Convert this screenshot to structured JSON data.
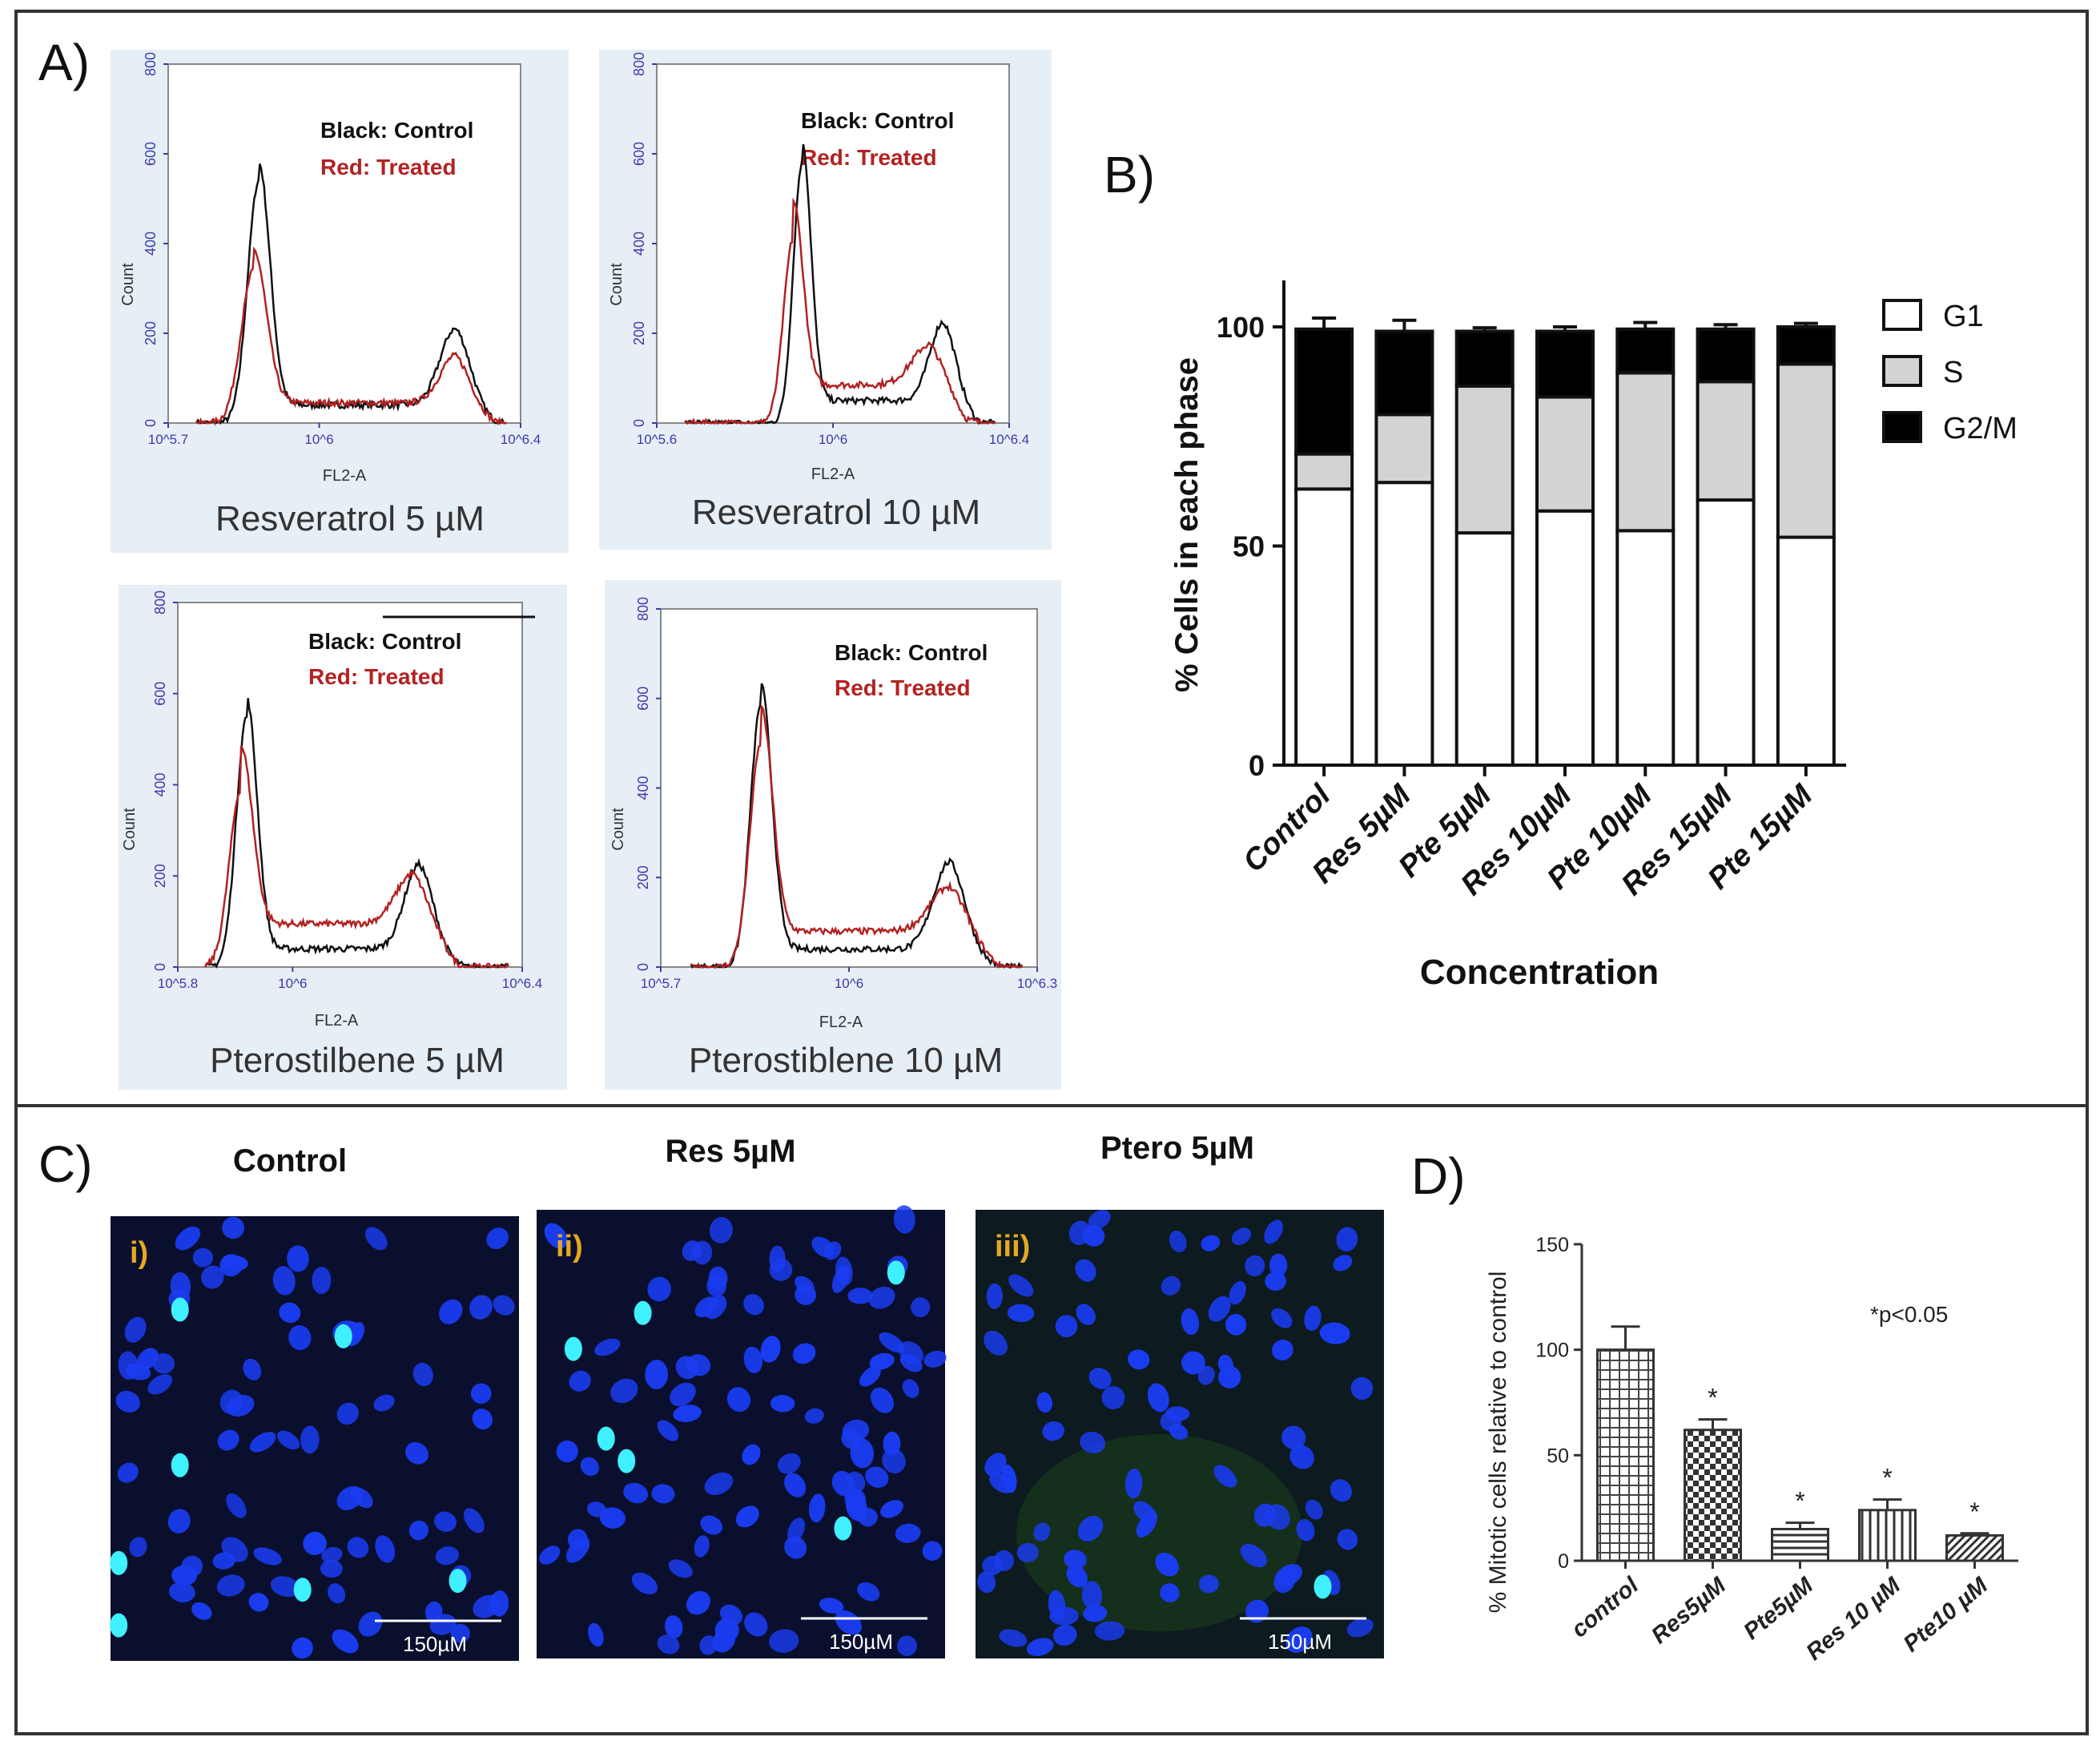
{
  "figure": {
    "panel_a_label": "A)",
    "panel_b_label": "B)",
    "panel_c_label": "C)",
    "panel_d_label": "D)"
  },
  "colors": {
    "control_trace": "#111111",
    "treated_trace": "#b22222",
    "histogram_panel_bg": "#e6eef6",
    "axis_tick_color": "#3a3aa8",
    "cell_bg": "#0a0f2e",
    "nucleus": "#1a3cf0",
    "mitotic": "#3ff0ff",
    "roman_label": "#e6a820"
  },
  "chart_data": [
    {
      "type": "line",
      "id": "flow-res5",
      "title": "Resveratrol 5 µM",
      "legend_control": "Black: Control",
      "legend_treated": "Red: Treated",
      "xlabel": "FL2-A",
      "ylabel": "Count",
      "yticks": [
        "0",
        "200",
        "400",
        "600",
        "800"
      ],
      "ylim": [
        0,
        800
      ],
      "xticks": [
        "10^5.7",
        "10^6",
        "10^6.4"
      ],
      "xlim": [
        5.7,
        6.4
      ],
      "series": [
        {
          "name": "Control",
          "peaks": [
            [
              5.88,
              540,
              0.022
            ],
            [
              6.27,
              170,
              0.03
            ]
          ],
          "floor": 40
        },
        {
          "name": "Treated",
          "peaks": [
            [
              5.87,
              340,
              0.025
            ],
            [
              6.27,
              105,
              0.03
            ]
          ],
          "floor": 45
        }
      ]
    },
    {
      "type": "line",
      "id": "flow-res10",
      "title": "Resveratrol 10 µM",
      "legend_control": "Black: Control",
      "legend_treated": "Red: Treated",
      "xlabel": "FL2-A",
      "ylabel": "Count",
      "yticks": [
        "0",
        "200",
        "400",
        "600",
        "800"
      ],
      "ylim": [
        0,
        800
      ],
      "xticks": [
        "10^5.6",
        "10^6",
        "10^6.4"
      ],
      "xlim": [
        5.6,
        6.4
      ],
      "series": [
        {
          "name": "Control",
          "peaks": [
            [
              5.93,
              580,
              0.02
            ],
            [
              6.25,
              175,
              0.03
            ]
          ],
          "floor": 50
        },
        {
          "name": "Treated",
          "peaks": [
            [
              5.91,
              410,
              0.022
            ],
            [
              6.22,
              90,
              0.04
            ]
          ],
          "floor": 85
        }
      ]
    },
    {
      "type": "line",
      "id": "flow-pte5",
      "title": "Pterostilbene 5 µM",
      "legend_control": "Black: Control",
      "legend_treated": "Red: Treated",
      "xlabel": "FL2-A",
      "ylabel": "Count",
      "yticks": [
        "0",
        "200",
        "400",
        "600",
        "800"
      ],
      "ylim": [
        0,
        800
      ],
      "xticks": [
        "10^5.8",
        "10^6",
        "10^6.4"
      ],
      "xlim": [
        5.8,
        6.4
      ],
      "series": [
        {
          "name": "Control",
          "peaks": [
            [
              5.92,
              550,
              0.018
            ],
            [
              6.22,
              185,
              0.025
            ]
          ],
          "floor": 40
        },
        {
          "name": "Treated",
          "peaks": [
            [
              5.91,
              390,
              0.02
            ],
            [
              6.21,
              110,
              0.03
            ]
          ],
          "floor": 95
        }
      ]
    },
    {
      "type": "line",
      "id": "flow-pte10",
      "title": "Pterostiblene 10 µM",
      "legend_control": "Black: Control",
      "legend_treated": "Red: Treated",
      "xlabel": "FL2-A",
      "ylabel": "Count",
      "yticks": [
        "0",
        "200",
        "400",
        "600",
        "800"
      ],
      "ylim": [
        0,
        800
      ],
      "xticks": [
        "10^5.7",
        "10^6",
        "10^6.3"
      ],
      "xlim": [
        5.7,
        6.3
      ],
      "series": [
        {
          "name": "Control",
          "peaks": [
            [
              5.86,
              590,
              0.017
            ],
            [
              6.16,
              195,
              0.025
            ]
          ],
          "floor": 40
        },
        {
          "name": "Treated",
          "peaks": [
            [
              5.86,
              500,
              0.018
            ],
            [
              6.16,
              100,
              0.03
            ]
          ],
          "floor": 80
        }
      ]
    },
    {
      "type": "bar",
      "id": "cell-cycle",
      "stacked": true,
      "categories": [
        "Control",
        "Res 5µM",
        "Pte 5µM",
        "Res 10µM",
        "Pte 10µM",
        "Res 15µM",
        "Pte 15µM"
      ],
      "series": [
        {
          "name": "G1",
          "values": [
            63,
            64.5,
            53,
            58,
            53.5,
            60.5,
            52
          ],
          "errors": [
            1,
            1.5,
            1.2,
            0.5,
            1.2,
            2,
            2.5
          ]
        },
        {
          "name": "S",
          "values": [
            8,
            15.5,
            33.5,
            26,
            36,
            27,
            39.5
          ],
          "errors": [
            0,
            0,
            0,
            0,
            0,
            0,
            0
          ]
        },
        {
          "name": "G2/M",
          "values": [
            28.5,
            19,
            12.5,
            15,
            10,
            12,
            8.5
          ],
          "errors": [
            2.5,
            2.5,
            0.8,
            1,
            1.5,
            1,
            0.8
          ]
        }
      ],
      "yticks": [
        "0",
        "50",
        "100"
      ],
      "ylim": [
        0,
        110
      ],
      "xlabel": "Concentration",
      "ylabel": "% Cells in each phase",
      "legend": "top-right"
    },
    {
      "type": "bar",
      "id": "mitotic",
      "categories": [
        "control",
        "Res5µM",
        "Pte5µM",
        "Res 10 µM",
        "Pte10 µM"
      ],
      "values": [
        100,
        62,
        15,
        24,
        12
      ],
      "errors": [
        11,
        5,
        3,
        5,
        1
      ],
      "significance": [
        "",
        "*",
        "*",
        "*",
        "*"
      ],
      "annotation": "*p<0.05",
      "yticks": [
        "0",
        "50",
        "100",
        "150"
      ],
      "ylim": [
        0,
        150
      ],
      "ylabel": "% Mitotic cells relative to control"
    }
  ],
  "micrographs": [
    {
      "title": "Control",
      "roman": "i)",
      "scale_label": "150µM"
    },
    {
      "title": "Res 5µM",
      "roman": "ii)",
      "scale_label": "150µM"
    },
    {
      "title": "Ptero 5µM",
      "roman": "iii)",
      "scale_label": "150µM"
    }
  ]
}
